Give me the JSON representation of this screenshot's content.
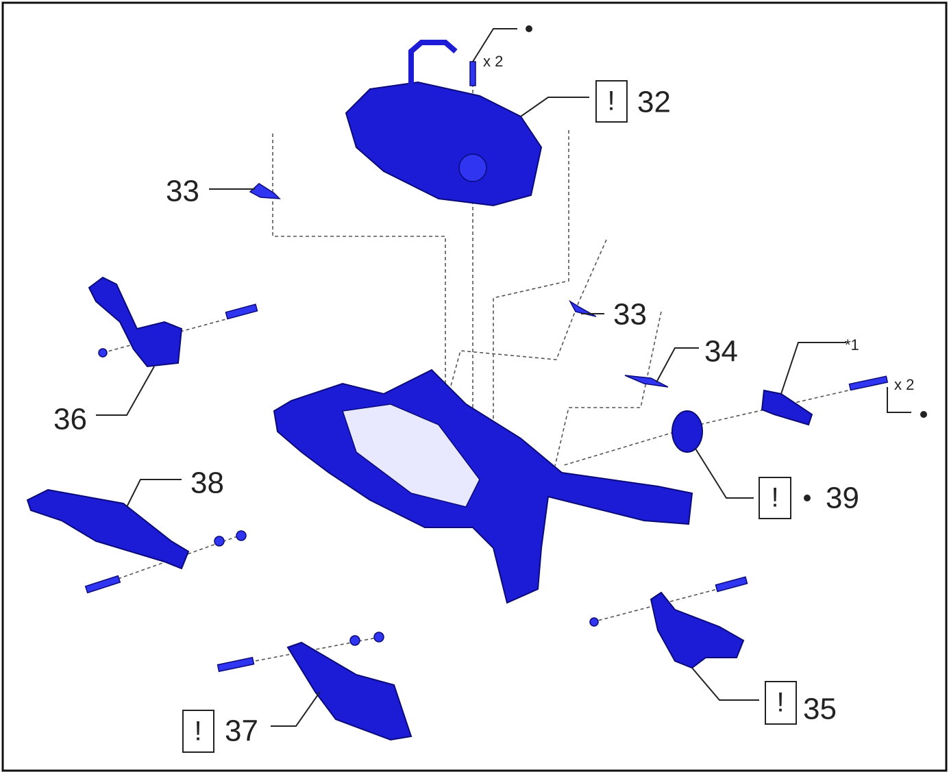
{
  "callouts": [
    {
      "label": "32",
      "flag": "!"
    },
    {
      "label": "33"
    },
    {
      "label": "33"
    },
    {
      "label": "34"
    },
    {
      "label": "39",
      "flag": "!"
    },
    {
      "label": "36"
    },
    {
      "label": "38"
    },
    {
      "label": "37",
      "flag": "!"
    },
    {
      "label": "35",
      "flag": "!"
    }
  ],
  "quantities": [
    "x 2",
    "x 2"
  ],
  "note": "*1"
}
